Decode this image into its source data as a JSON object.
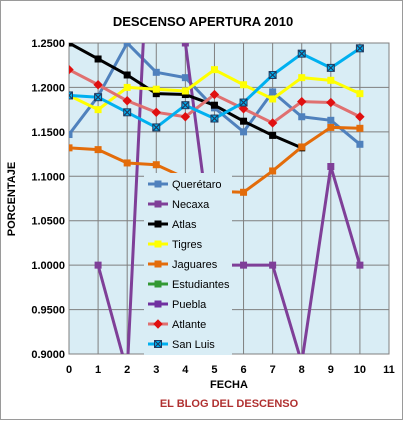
{
  "chart_data": {
    "type": "line",
    "title": "DESCENSO APERTURA 2010",
    "xlabel": "FECHA",
    "ylabel": "PORCENTAJE",
    "credit": "EL BLOG DEL DESCENSO",
    "xlim": [
      0,
      11
    ],
    "ylim": [
      0.9,
      1.25
    ],
    "x_ticks": [
      "0",
      "1",
      "2",
      "3",
      "4",
      "5",
      "6",
      "7",
      "8",
      "9",
      "10",
      "11"
    ],
    "y_ticks": [
      "0.9000",
      "0.9500",
      "1.0000",
      "1.0500",
      "1.1000",
      "1.1500",
      "1.2000",
      "1.2500"
    ],
    "grid": true,
    "legend_position": "inside-center",
    "series": [
      {
        "name": "Querétaro",
        "color": "#4f81bd",
        "marker": "square",
        "marker_color": "#4f81bd",
        "values": [
          1.147,
          1.19,
          1.25,
          1.217,
          1.211,
          1.177,
          1.15,
          1.195,
          1.167,
          1.163,
          1.136
        ]
      },
      {
        "name": "Necaxa",
        "color": "#7f3f98",
        "marker": "square",
        "marker_color": "#7f3f98",
        "values": [
          null,
          1.0,
          0.88,
          1.55,
          1.25,
          1.0,
          1.0,
          1.0,
          0.89,
          1.111,
          1.0
        ]
      },
      {
        "name": "Atlas",
        "color": "#000000",
        "marker": "square",
        "marker_color": "#000000",
        "values": [
          1.25,
          1.232,
          1.214,
          1.193,
          1.192,
          1.18,
          1.162,
          1.146,
          1.132,
          null,
          null
        ]
      },
      {
        "name": "Tigres",
        "color": "#ffff00",
        "marker": "square",
        "marker_color": "#ffff00",
        "values": [
          1.191,
          1.175,
          1.2,
          1.198,
          1.196,
          1.22,
          1.203,
          1.187,
          1.211,
          1.208,
          1.193
        ]
      },
      {
        "name": "Jaguares",
        "color": "#e36c0a",
        "marker": "square",
        "marker_color": "#e36c0a",
        "values": [
          1.132,
          1.13,
          1.115,
          1.113,
          1.098,
          1.083,
          1.082,
          1.106,
          1.133,
          1.155,
          1.154
        ]
      },
      {
        "name": "Estudiantes",
        "color": "#339933",
        "marker": "square",
        "marker_color": "#339933",
        "values": []
      },
      {
        "name": "Puebla",
        "color": "#7030a0",
        "marker": "square",
        "marker_color": "#7030a0",
        "values": []
      },
      {
        "name": "Atlante",
        "color": "#e07070",
        "marker": "diamond",
        "marker_color": "#e01010",
        "values": [
          1.22,
          1.203,
          1.185,
          1.172,
          1.167,
          1.192,
          1.176,
          1.16,
          1.184,
          1.183,
          1.167
        ]
      },
      {
        "name": "San Luis",
        "color": "#00b0f0",
        "marker": "x-square",
        "marker_color": "#1f3a60",
        "values": [
          1.191,
          1.189,
          1.172,
          1.155,
          1.18,
          1.165,
          1.183,
          1.214,
          1.238,
          1.222,
          1.244
        ]
      }
    ]
  }
}
